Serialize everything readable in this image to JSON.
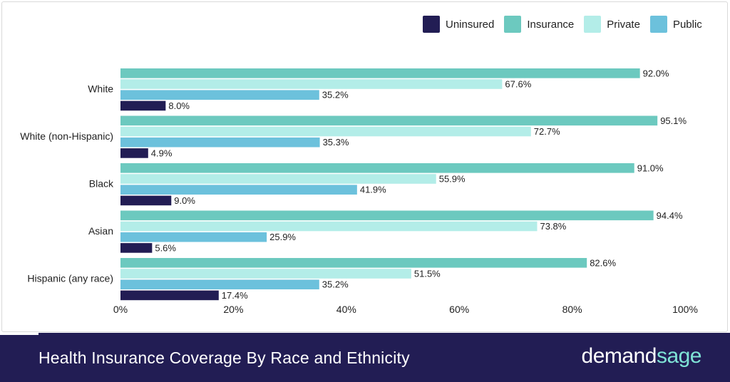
{
  "chart_data": {
    "type": "bar",
    "orientation": "horizontal",
    "title": "Health Insurance Coverage By Race and Ethnicity",
    "categories": [
      "White",
      "White (non-Hispanic)",
      "Black",
      "Asian",
      "Hispanic (any race)"
    ],
    "series": [
      {
        "name": "Insurance",
        "color": "#6cc9bf",
        "values": [
          92.0,
          95.1,
          91.0,
          94.4,
          82.6
        ]
      },
      {
        "name": "Private",
        "color": "#b3ede8",
        "values": [
          67.6,
          72.7,
          55.9,
          73.8,
          51.5
        ]
      },
      {
        "name": "Public",
        "color": "#6cc1dc",
        "values": [
          35.2,
          35.3,
          41.9,
          25.9,
          35.2
        ]
      },
      {
        "name": "Uninsured",
        "color": "#221d54",
        "values": [
          8.0,
          4.9,
          9.0,
          5.6,
          17.4
        ]
      }
    ],
    "value_labels": [
      [
        "92.0%",
        "67.6%",
        "35.2%",
        "8.0%"
      ],
      [
        "95.1%",
        "72.7%",
        "35.3%",
        "4.9%"
      ],
      [
        "91.0%",
        "55.9%",
        "41.9%",
        "9.0%"
      ],
      [
        "94.4%",
        "73.8%",
        "25.9%",
        "5.6%"
      ],
      [
        "82.6%",
        "51.5%",
        "35.2%",
        "17.4%"
      ]
    ],
    "xlim": [
      0,
      100
    ],
    "xticks": [
      "0%",
      "20%",
      "40%",
      "60%",
      "80%",
      "100%"
    ],
    "grid": false,
    "legend_position": "top-right"
  },
  "legend": [
    {
      "label": "Uninsured",
      "color": "#221d54"
    },
    {
      "label": "Insurance",
      "color": "#6cc9bf"
    },
    {
      "label": "Private",
      "color": "#b3ede8"
    },
    {
      "label": "Public",
      "color": "#6cc1dc"
    }
  ],
  "footer": {
    "title": "Health Insurance Coverage By Race and Ethnicity",
    "brand_part1": "demand",
    "brand_part2": "sage"
  }
}
